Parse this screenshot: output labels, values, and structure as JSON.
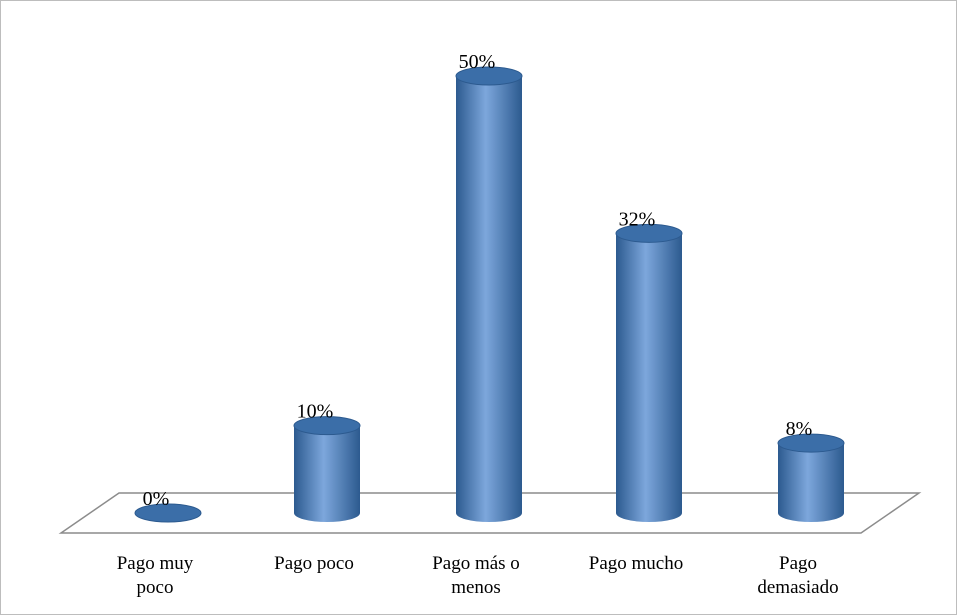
{
  "chart_data": {
    "type": "bar",
    "categories": [
      [
        "Pago muy",
        "poco"
      ],
      [
        "Pago poco"
      ],
      [
        "Pago más o",
        "menos"
      ],
      [
        "Pago mucho"
      ],
      [
        "Pago",
        "demasiado"
      ]
    ],
    "values": [
      0,
      10,
      50,
      32,
      8
    ],
    "value_labels": [
      "0%",
      "10%",
      "50%",
      "32%",
      "8%"
    ],
    "ylim": [
      0,
      50
    ],
    "grid": false,
    "legend": "none",
    "style": "3d-cylinder",
    "colors": {
      "bar_main": "#4f81bd",
      "bar_dark": "#2c5a8f",
      "bar_light": "#7da7dc",
      "bar_top": "#3b6ea8",
      "floor_stroke": "#8c8c8c",
      "frame": "#bdbdbd"
    }
  }
}
